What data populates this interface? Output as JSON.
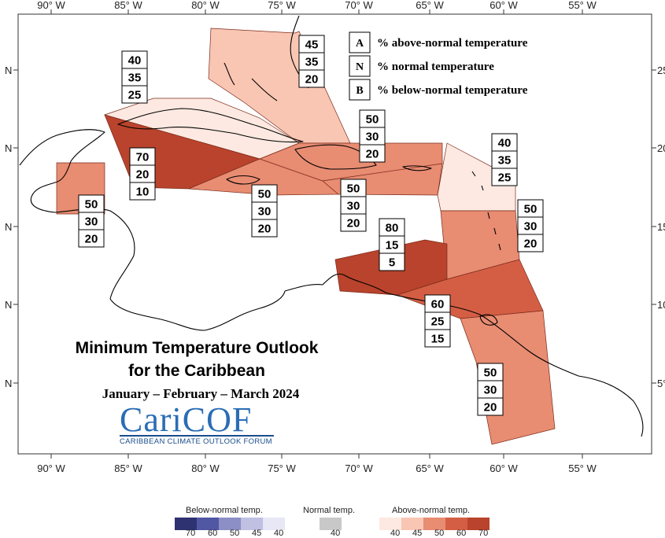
{
  "map": {
    "longitude_labels": [
      "90° W",
      "85° W",
      "80° W",
      "75° W",
      "70° W",
      "65° W",
      "60° W",
      "55° W"
    ],
    "latitude_labels_left": [
      "N",
      "N",
      "N",
      "N",
      "N"
    ],
    "latitude_labels_right": [
      "25",
      "20",
      "15",
      "10",
      "5°"
    ]
  },
  "regions": [
    {
      "id": "bahamas",
      "color": "#f9c6b3",
      "probs": [
        "45",
        "35",
        "20"
      ]
    },
    {
      "id": "cuba",
      "color": "#fde9e1",
      "probs": [
        "40",
        "35",
        "25"
      ]
    },
    {
      "id": "cayman-jamaica-sea",
      "color": "#b9432c",
      "probs": [
        "70",
        "20",
        "10"
      ]
    },
    {
      "id": "belize",
      "color": "#e88c72",
      "probs": [
        "50",
        "30",
        "20"
      ]
    },
    {
      "id": "jamaica",
      "color": "#e88c72",
      "probs": [
        "50",
        "30",
        "20"
      ]
    },
    {
      "id": "hispaniola-pr",
      "color": "#e88c72",
      "probs": [
        "50",
        "30",
        "20"
      ]
    },
    {
      "id": "turks-caicos",
      "color": "#e88c72",
      "probs": [
        "50",
        "30",
        "20"
      ]
    },
    {
      "id": "leeward-islands",
      "color": "#fde9e1",
      "probs": [
        "40",
        "35",
        "25"
      ]
    },
    {
      "id": "windward-islands",
      "color": "#e88c72",
      "probs": [
        "50",
        "30",
        "20"
      ]
    },
    {
      "id": "abc-islands",
      "color": "#b9432c",
      "probs": [
        "80",
        "15",
        "5"
      ]
    },
    {
      "id": "trinidad-barbados",
      "color": "#d45e44",
      "probs": [
        "60",
        "25",
        "15"
      ]
    },
    {
      "id": "guianas",
      "color": "#e88c72",
      "probs": [
        "50",
        "30",
        "20"
      ]
    }
  ],
  "abn_legend": [
    {
      "letter": "A",
      "text": "% above-normal temperature"
    },
    {
      "letter": "N",
      "text": "% normal temperature"
    },
    {
      "letter": "B",
      "text": "% below-normal temperature"
    }
  ],
  "title": {
    "line1": "Minimum Temperature Outlook",
    "line2": "for the Caribbean",
    "period": "January – February – March 2024"
  },
  "logo": {
    "word": "CariCOF",
    "subtitle": "CARIBBEAN CLIMATE OUTLOOK FORUM",
    "icon": "caricof-logo"
  },
  "scale": {
    "below": {
      "title": "Below-normal temp.",
      "colors": [
        "#2e3270",
        "#5157a3",
        "#8c8fc6",
        "#bfc0e2",
        "#e7e7f5"
      ],
      "ticks": [
        "70",
        "60",
        "50",
        "45",
        "40"
      ]
    },
    "normal": {
      "title": "Normal temp.",
      "colors": [
        "#c8c8c8"
      ],
      "ticks": [
        "40"
      ]
    },
    "above": {
      "title": "Above-normal temp.",
      "colors": [
        "#fde9e1",
        "#f9c6b3",
        "#e88c72",
        "#d45e44",
        "#b9432c"
      ],
      "ticks": [
        "40",
        "45",
        "50",
        "60",
        "70"
      ]
    }
  }
}
